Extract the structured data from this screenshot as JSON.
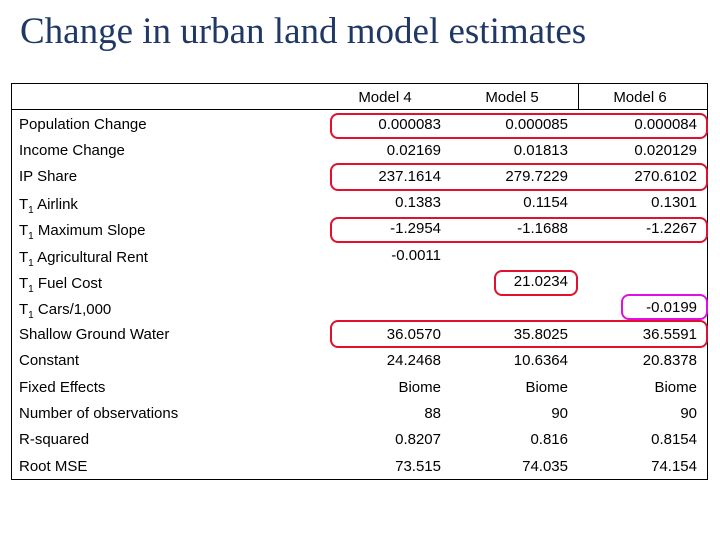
{
  "title": "Change in urban land model estimates",
  "columns": [
    "Model 4",
    "Model 5",
    "Model 6"
  ],
  "rows": [
    {
      "label": "Population Change",
      "values": [
        "0.000083",
        "0.000085",
        "0.000084"
      ]
    },
    {
      "label": "Income Change",
      "values": [
        "0.02169",
        "0.01813",
        "0.020129"
      ]
    },
    {
      "label": "IP Share",
      "values": [
        "237.1614",
        "279.7229",
        "270.6102"
      ]
    },
    {
      "label_prefix": "T",
      "label_sub": "1",
      "label_rest": " Airlink",
      "values": [
        "0.1383",
        "0.1154",
        "0.1301"
      ]
    },
    {
      "label_prefix": "T",
      "label_sub": "1",
      "label_rest": " Maximum Slope",
      "values": [
        "-1.2954",
        "-1.1688",
        "-1.2267"
      ]
    },
    {
      "label_prefix": "T",
      "label_sub": "1",
      "label_rest": " Agricultural Rent",
      "values": [
        "-0.0011",
        "",
        ""
      ]
    },
    {
      "label_prefix": "T",
      "label_sub": "1",
      "label_rest": " Fuel Cost",
      "values": [
        "",
        "21.0234",
        ""
      ]
    },
    {
      "label_prefix": "T",
      "label_sub": "1",
      "label_rest": " Cars/1,000",
      "values": [
        "",
        "",
        "-0.0199"
      ]
    },
    {
      "label": "Shallow Ground Water",
      "values": [
        "36.0570",
        "35.8025",
        "36.5591"
      ]
    },
    {
      "label": "Constant",
      "values": [
        "24.2468",
        "10.6364",
        "20.8378"
      ]
    },
    {
      "label": "Fixed Effects",
      "values": [
        "Biome",
        "Biome",
        "Biome"
      ]
    },
    {
      "label": "Number of observations",
      "values": [
        "88",
        "90",
        "90"
      ]
    },
    {
      "label": "R-squared",
      "values": [
        "0.8207",
        "0.816",
        "0.8154"
      ]
    },
    {
      "label": "Root MSE",
      "values": [
        "73.515",
        "74.035",
        "74.154"
      ]
    }
  ],
  "highlight_colors": {
    "red": "#e0102e",
    "magenta": "#e010e0"
  }
}
